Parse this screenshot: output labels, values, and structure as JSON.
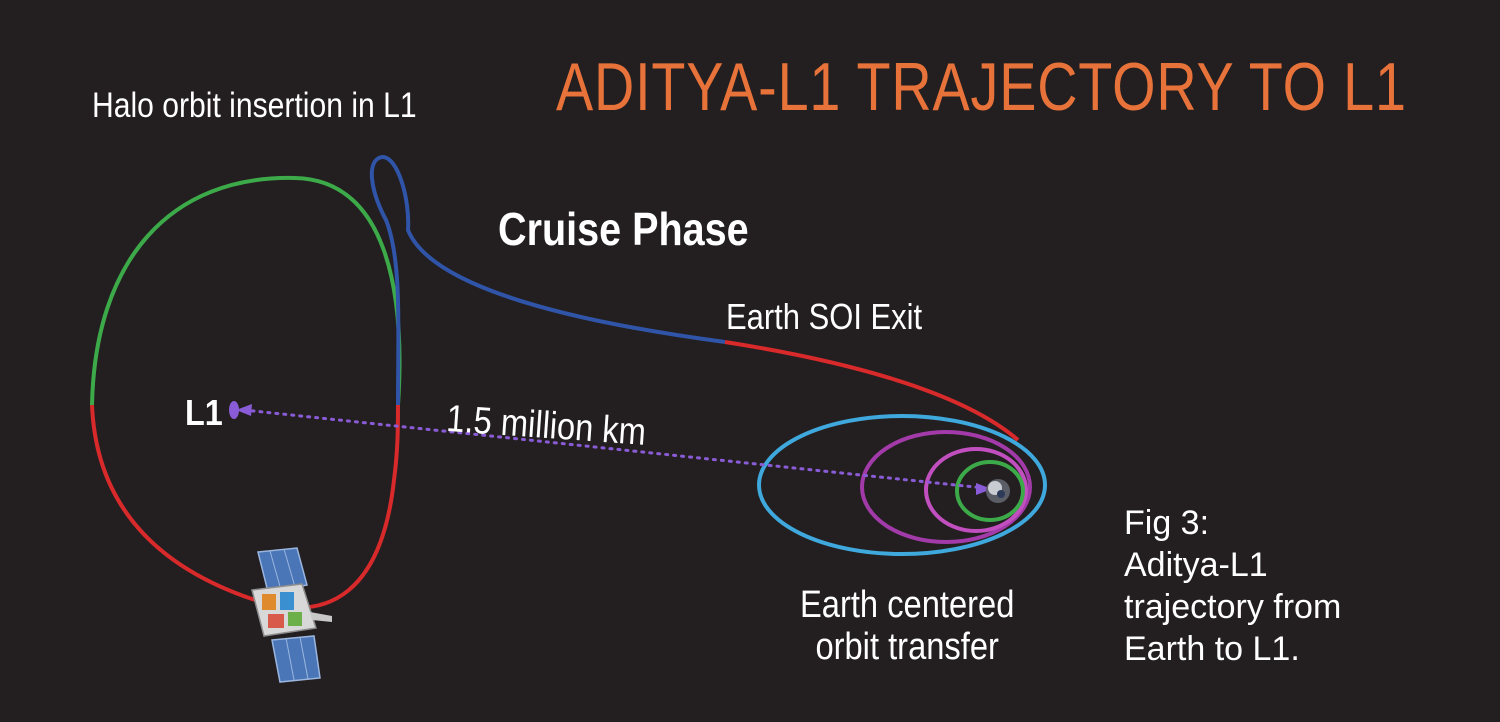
{
  "title": "ADITYA-L1 TRAJECTORY TO L1",
  "labels": {
    "halo_insertion": "Halo orbit insertion in L1",
    "cruise_phase": "Cruise Phase",
    "earth_soi_exit": "Earth SOI Exit",
    "l1": "L1",
    "distance": "1.5 million km",
    "earth_centered_line1": "Earth centered",
    "earth_centered_line2": "orbit transfer"
  },
  "caption": {
    "line1": "Fig 3:",
    "line2": "Aditya-L1",
    "line3": "trajectory from",
    "line4": "Earth to L1."
  },
  "colors": {
    "background": "#231f20",
    "title": "#e8733a",
    "halo_upper": "#3daa4a",
    "halo_lower": "#d8292b",
    "cruise": "#2f54a8",
    "soi_exit_arc": "#d8292b",
    "orbit_outer": "#3fa8dc",
    "orbit_purple": "#a23ba9",
    "orbit_magenta": "#c24fbf",
    "orbit_inner": "#3daa4a",
    "dotted_line": "#8a5bd6"
  },
  "icons": {
    "spacecraft": "spacecraft-icon",
    "earth": "earth-icon"
  }
}
